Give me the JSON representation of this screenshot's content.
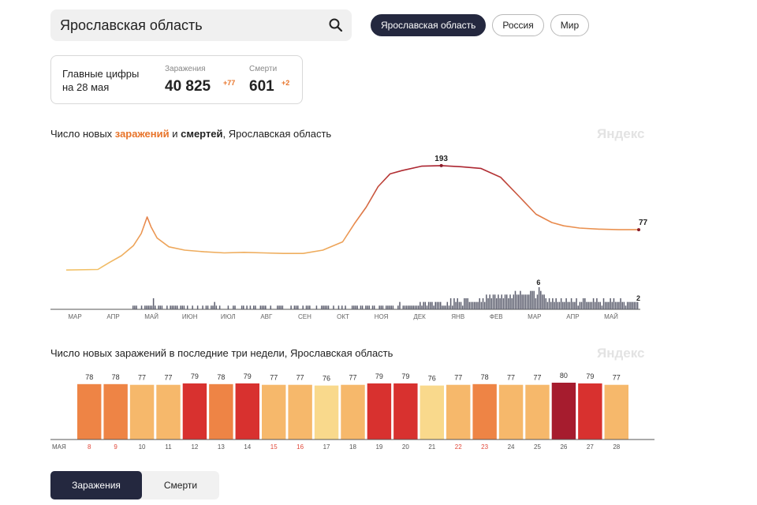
{
  "search": {
    "value": "Ярославская область"
  },
  "regions": [
    {
      "label": "Ярославская область",
      "active": true
    },
    {
      "label": "Россия",
      "active": false
    },
    {
      "label": "Мир",
      "active": false
    }
  ],
  "summary": {
    "caption_line1": "Главные цифры",
    "caption_line2": "на 28 мая",
    "infections": {
      "label": "Заражения",
      "value": "40 825",
      "delta": "+77"
    },
    "deaths": {
      "label": "Смерти",
      "value": "601",
      "delta": "+2"
    }
  },
  "chart1": {
    "prefix": "Число новых ",
    "em1": "заражений",
    "mid": " и ",
    "em2": "смертей",
    "suffix": ", Ярославская область",
    "watermark": "Яндекс"
  },
  "chart2": {
    "title": "Число новых заражений в последние три недели, Ярославская область",
    "watermark": "Яндекс"
  },
  "tabs": {
    "infections": "Заражения",
    "deaths": "Смерти"
  },
  "chart_data": [
    {
      "type": "line",
      "title": "Число новых заражений и смертей, Ярославская область",
      "x_ticks": [
        "МАР",
        "АПР",
        "МАЙ",
        "ИЮН",
        "ИЮЛ",
        "АВГ",
        "СЕН",
        "ОКТ",
        "НОЯ",
        "ДЕК",
        "ЯНВ",
        "ФЕВ",
        "МАР",
        "АПР",
        "МАЙ"
      ],
      "series": [
        {
          "name": "заражений",
          "x": [
            0,
            0.8,
            1.1,
            1.4,
            1.7,
            1.9,
            2.05,
            2.15,
            2.3,
            2.6,
            3.0,
            3.5,
            4.0,
            4.5,
            5.0,
            5.5,
            6.0,
            6.5,
            7.0,
            7.3,
            7.6,
            7.9,
            8.2,
            8.5,
            9.0,
            9.5,
            10.0,
            10.5,
            11.0,
            11.5,
            11.9,
            12.3,
            12.6,
            13.0,
            13.5,
            14.0,
            14.5
          ],
          "values": [
            4,
            5,
            18,
            30,
            48,
            70,
            100,
            82,
            62,
            46,
            40,
            37,
            35,
            36,
            35,
            34,
            34,
            40,
            55,
            88,
            118,
            155,
            178,
            184,
            192,
            193,
            191,
            188,
            172,
            135,
            105,
            90,
            84,
            80,
            78,
            77,
            77
          ]
        },
        {
          "name": "смертей",
          "labels": {
            "peak": 6,
            "last": 2
          },
          "values": [
            0,
            0,
            0,
            0,
            0,
            0,
            0,
            0,
            0,
            0,
            0,
            0,
            0,
            0,
            0,
            0,
            0,
            0,
            0,
            0,
            0,
            0,
            0,
            0,
            0,
            0,
            0,
            0,
            0,
            0,
            0,
            0,
            0,
            0,
            0,
            0,
            0,
            0,
            0,
            1,
            1,
            1,
            0,
            0,
            1,
            0,
            1,
            1,
            1,
            1,
            1,
            3,
            1,
            0,
            1,
            1,
            1,
            0,
            0,
            1,
            0,
            1,
            1,
            1,
            1,
            1,
            0,
            1,
            1,
            1,
            0,
            1,
            0,
            0,
            1,
            0,
            0,
            1,
            0,
            0,
            1,
            0,
            1,
            1,
            0,
            1,
            1,
            2,
            1,
            0,
            1,
            0,
            0,
            0,
            0,
            1,
            0,
            0,
            1,
            1,
            0,
            0,
            0,
            1,
            1,
            0,
            1,
            0,
            1,
            0,
            1,
            1,
            0,
            0,
            1,
            1,
            1,
            1,
            0,
            0,
            1,
            0,
            0,
            0,
            1,
            1,
            1,
            1,
            0,
            0,
            0,
            0,
            1,
            0,
            1,
            1,
            1,
            0,
            0,
            1,
            0,
            1,
            1,
            1,
            0,
            0,
            0,
            1,
            0,
            0,
            1,
            1,
            1,
            1,
            1,
            0,
            0,
            1,
            0,
            0,
            1,
            0,
            1,
            0,
            1,
            0,
            0,
            0,
            1,
            1,
            1,
            1,
            0,
            1,
            1,
            0,
            1,
            1,
            1,
            0,
            1,
            1,
            0,
            0,
            1,
            1,
            1,
            0,
            1,
            1,
            1,
            1,
            1,
            0,
            0,
            1,
            2,
            0,
            1,
            1,
            1,
            1,
            1,
            1,
            1,
            1,
            1,
            1,
            2,
            1,
            2,
            2,
            1,
            2,
            2,
            2,
            1,
            2,
            2,
            2,
            2,
            1,
            1,
            1,
            2,
            1,
            3,
            1,
            3,
            2,
            3,
            2,
            2,
            1,
            3,
            3,
            3,
            2,
            2,
            2,
            2,
            2,
            2,
            3,
            2,
            3,
            2,
            4,
            3,
            4,
            3,
            4,
            4,
            3,
            4,
            3,
            4,
            3,
            4,
            4,
            3,
            4,
            3,
            4,
            5,
            4,
            4,
            5,
            4,
            4,
            4,
            4,
            4,
            5,
            5,
            5,
            3,
            4,
            6,
            5,
            4,
            4,
            3,
            2,
            3,
            2,
            3,
            2,
            3,
            2,
            2,
            3,
            2,
            2,
            3,
            2,
            2,
            3,
            2,
            2,
            3,
            1,
            2,
            2,
            3,
            3,
            2,
            2,
            2,
            2,
            3,
            2,
            3,
            2,
            2,
            1,
            3,
            2,
            2,
            2,
            3,
            2,
            3,
            2,
            2,
            2,
            3,
            2,
            2,
            1,
            2,
            2,
            2,
            2,
            2,
            2,
            2
          ]
        }
      ],
      "annotations": [
        {
          "x": 9.5,
          "value": 193,
          "label": "193"
        },
        {
          "x": 14.5,
          "value": 77,
          "label": "77"
        }
      ],
      "ylim": [
        0,
        200
      ]
    },
    {
      "type": "bar",
      "title": "Число новых заражений в последние три недели, Ярославская область",
      "month_label": "МАЯ",
      "categories": [
        "8",
        "9",
        "10",
        "11",
        "12",
        "13",
        "14",
        "15",
        "16",
        "17",
        "18",
        "19",
        "20",
        "21",
        "22",
        "23",
        "24",
        "25",
        "26",
        "27",
        "28"
      ],
      "weekend": [
        true,
        true,
        false,
        false,
        false,
        false,
        false,
        true,
        true,
        false,
        false,
        false,
        false,
        false,
        true,
        true,
        false,
        false,
        false,
        false,
        false
      ],
      "values": [
        78,
        78,
        77,
        77,
        79,
        78,
        79,
        77,
        77,
        76,
        77,
        79,
        79,
        76,
        77,
        78,
        77,
        77,
        80,
        79,
        77
      ],
      "colors": {
        "76": "#f9d98c",
        "77": "#f6b86b",
        "78": "#ee8445",
        "79": "#d8312f",
        "80": "#a61c2e"
      }
    }
  ]
}
